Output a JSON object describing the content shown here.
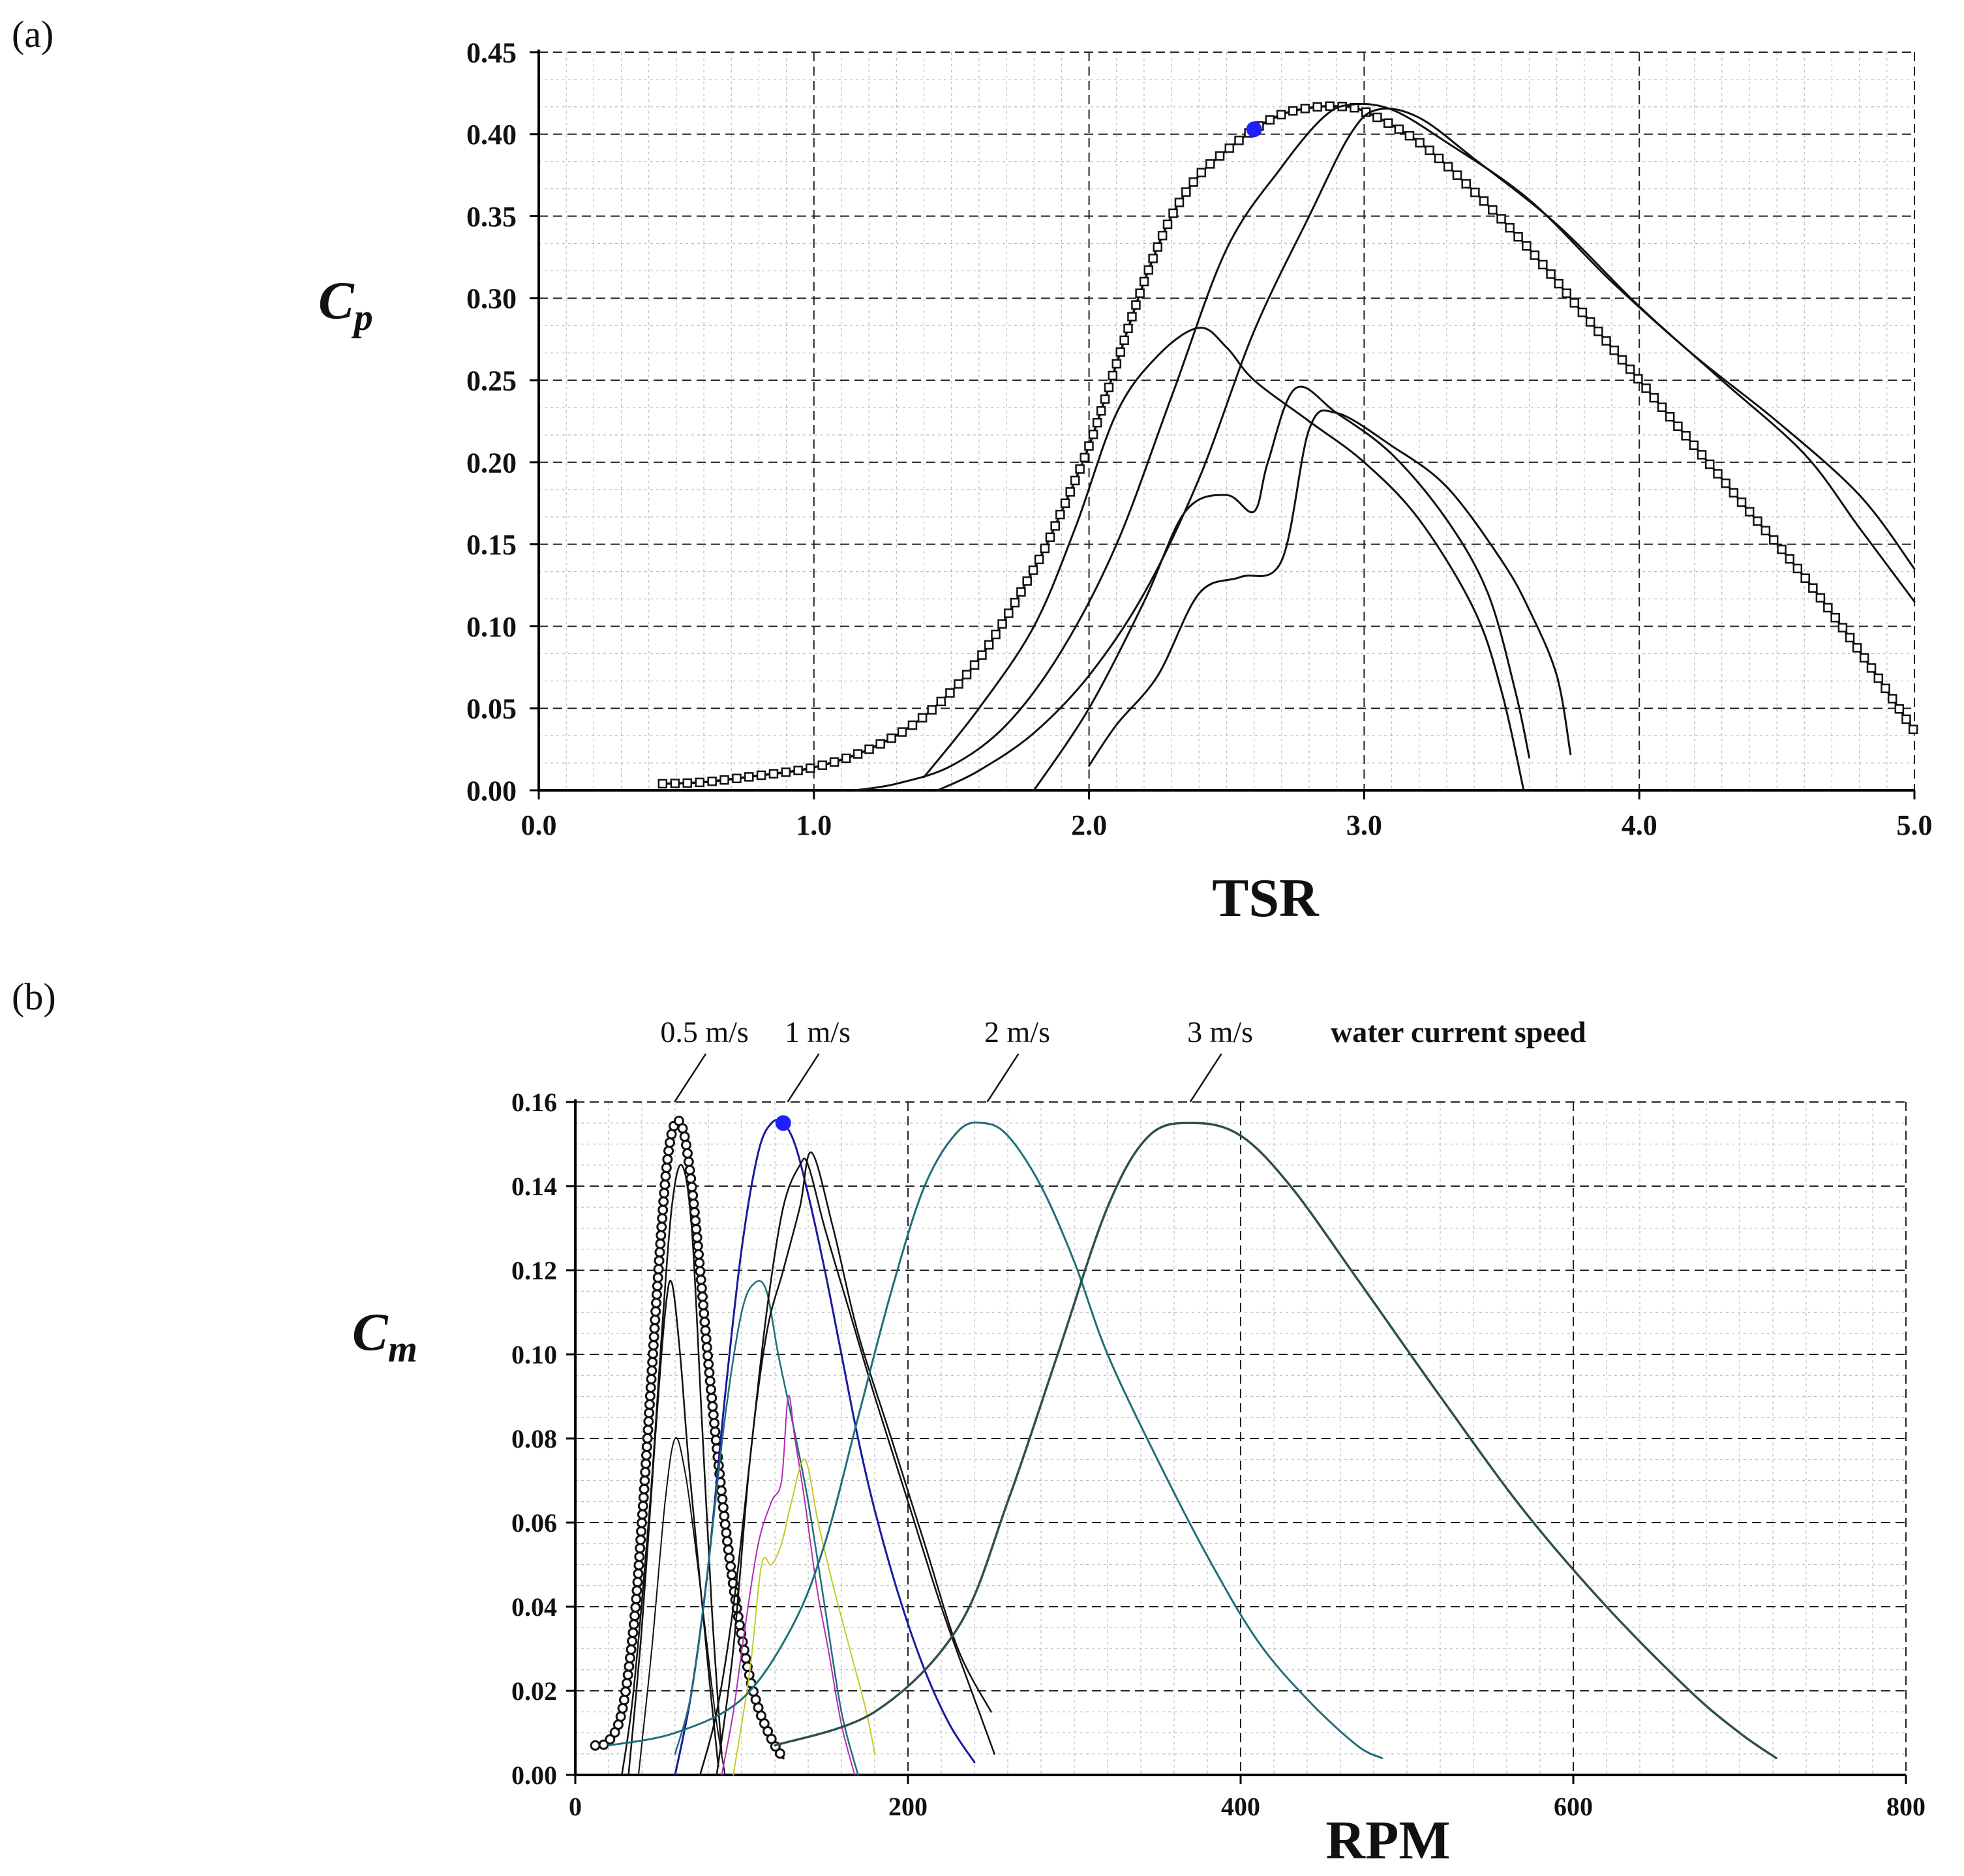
{
  "chart_data": [
    {
      "panel_label": "(a)",
      "type": "line",
      "title": "",
      "xlabel": "TSR",
      "ylabel": {
        "symbol": "C",
        "subscript": "p"
      },
      "xlim": [
        0,
        5
      ],
      "ylim": [
        0,
        0.45
      ],
      "x_ticks": [
        0,
        1,
        2,
        3,
        4,
        5
      ],
      "x_tick_labels": [
        "0.0",
        "1.0",
        "2.0",
        "3.0",
        "4.0",
        "5.0"
      ],
      "y_ticks": [
        0,
        0.05,
        0.1,
        0.15,
        0.2,
        0.25,
        0.3,
        0.35,
        0.4,
        0.45
      ],
      "y_tick_labels": [
        "0.00",
        "0.05",
        "0.10",
        "0.15",
        "0.20",
        "0.25",
        "0.30",
        "0.35",
        "0.40",
        "0.45"
      ],
      "grid": true,
      "highlight_point": {
        "x": 2.6,
        "y": 0.403,
        "color": "#1f1fff"
      },
      "series": [
        {
          "name": "main",
          "color": "#111111",
          "width": 3.5,
          "markers": "square",
          "x": [
            0.45,
            0.6,
            0.8,
            1.0,
            1.2,
            1.4,
            1.6,
            1.8,
            1.9,
            2.0,
            2.1,
            2.2,
            2.3,
            2.4,
            2.5,
            2.6,
            2.7,
            2.8,
            2.9,
            3.0,
            3.2,
            3.4,
            3.6,
            3.8,
            4.0,
            4.2,
            4.4,
            4.6,
            4.8,
            5.0
          ],
          "y": [
            0.004,
            0.005,
            0.009,
            0.014,
            0.025,
            0.045,
            0.08,
            0.135,
            0.17,
            0.21,
            0.26,
            0.31,
            0.35,
            0.375,
            0.39,
            0.403,
            0.412,
            0.416,
            0.417,
            0.414,
            0.395,
            0.365,
            0.33,
            0.29,
            0.25,
            0.21,
            0.17,
            0.13,
            0.085,
            0.036
          ]
        },
        {
          "name": "s2",
          "color": "#111111",
          "width": 3,
          "x": [
            1.15,
            1.3,
            1.5,
            1.7,
            1.9,
            2.1,
            2.3,
            2.5,
            2.7,
            2.85,
            2.95,
            3.1,
            3.3,
            3.6,
            3.9,
            4.2,
            4.5,
            4.8,
            5.0
          ],
          "y": [
            0.0,
            0.004,
            0.015,
            0.04,
            0.085,
            0.15,
            0.24,
            0.33,
            0.38,
            0.41,
            0.418,
            0.415,
            0.395,
            0.36,
            0.31,
            0.265,
            0.225,
            0.18,
            0.135
          ]
        },
        {
          "name": "s3",
          "color": "#111111",
          "width": 3,
          "x": [
            1.45,
            1.6,
            1.8,
            2.0,
            2.2,
            2.4,
            2.6,
            2.8,
            2.95,
            3.05,
            3.2,
            3.4,
            3.7,
            4.0,
            4.3,
            4.6,
            4.8,
            5.0
          ],
          "y": [
            0.0,
            0.012,
            0.035,
            0.07,
            0.12,
            0.19,
            0.28,
            0.35,
            0.4,
            0.415,
            0.41,
            0.385,
            0.345,
            0.295,
            0.25,
            0.205,
            0.16,
            0.115
          ]
        },
        {
          "name": "s4",
          "color": "#111111",
          "width": 3,
          "x": [
            1.4,
            1.6,
            1.8,
            1.95,
            2.1,
            2.25,
            2.4,
            2.5,
            2.6,
            2.8,
            3.0,
            3.2,
            3.4,
            3.5,
            3.58
          ],
          "y": [
            0.008,
            0.05,
            0.1,
            0.16,
            0.23,
            0.265,
            0.282,
            0.27,
            0.25,
            0.225,
            0.2,
            0.165,
            0.11,
            0.06,
            0.0
          ]
        },
        {
          "name": "s5",
          "color": "#111111",
          "width": 3,
          "x": [
            1.8,
            2.0,
            2.2,
            2.35,
            2.5,
            2.6,
            2.65,
            2.75,
            2.9,
            3.1,
            3.3,
            3.45,
            3.55,
            3.6
          ],
          "y": [
            0.0,
            0.05,
            0.115,
            0.17,
            0.18,
            0.17,
            0.2,
            0.245,
            0.23,
            0.205,
            0.165,
            0.12,
            0.06,
            0.02
          ]
        },
        {
          "name": "s6",
          "color": "#111111",
          "width": 3,
          "x": [
            2.0,
            2.1,
            2.25,
            2.4,
            2.55,
            2.7,
            2.8,
            2.9,
            3.1,
            3.3,
            3.5,
            3.6,
            3.7,
            3.75
          ],
          "y": [
            0.015,
            0.04,
            0.07,
            0.12,
            0.13,
            0.14,
            0.22,
            0.23,
            0.21,
            0.185,
            0.14,
            0.11,
            0.07,
            0.022
          ]
        }
      ]
    },
    {
      "panel_label": "(b)",
      "type": "line",
      "title": "",
      "xlabel": "RPM",
      "ylabel": {
        "symbol": "C",
        "subscript": "m"
      },
      "xlim": [
        0,
        800
      ],
      "ylim": [
        0,
        0.16
      ],
      "x_ticks": [
        0,
        200,
        400,
        600,
        800
      ],
      "x_tick_labels": [
        "0",
        "200",
        "400",
        "600",
        "800"
      ],
      "y_ticks": [
        0,
        0.02,
        0.04,
        0.06,
        0.08,
        0.1,
        0.12,
        0.14,
        0.16
      ],
      "y_tick_labels": [
        "0.00",
        "0.02",
        "0.04",
        "0.06",
        "0.08",
        "0.10",
        "0.12",
        "0.14",
        "0.16"
      ],
      "grid": true,
      "highlight_point": {
        "x": 125,
        "y": 0.155,
        "color": "#1f1fff"
      },
      "annotations": [
        {
          "text": "0.5 m/s",
          "x": 62
        },
        {
          "text": "1 m/s",
          "x": 130
        },
        {
          "text": "2 m/s",
          "x": 250
        },
        {
          "text": "3 m/s",
          "x": 372
        },
        {
          "text": "water current speed"
        }
      ],
      "series": [
        {
          "name": "0.5 m/s main",
          "color": "#111111",
          "width": 4,
          "markers": "circle",
          "x": [
            12,
            20,
            28,
            35,
            40,
            45,
            50,
            55,
            60,
            65,
            70,
            75,
            80,
            85,
            90,
            95,
            100,
            105,
            110,
            115,
            120,
            125
          ],
          "y": [
            0.007,
            0.008,
            0.015,
            0.035,
            0.06,
            0.09,
            0.12,
            0.145,
            0.155,
            0.153,
            0.14,
            0.12,
            0.098,
            0.078,
            0.06,
            0.045,
            0.033,
            0.023,
            0.016,
            0.011,
            0.007,
            0.004
          ]
        },
        {
          "name": "0.5 m/s b",
          "color": "#111111",
          "width": 2.5,
          "x": [
            28,
            35,
            45,
            52,
            58,
            64,
            70,
            76,
            82,
            88
          ],
          "y": [
            0.0,
            0.02,
            0.065,
            0.105,
            0.135,
            0.145,
            0.13,
            0.085,
            0.04,
            0.005
          ]
        },
        {
          "name": "0.5 m/s c",
          "color": "#111111",
          "width": 2.5,
          "x": [
            32,
            40,
            48,
            54,
            58,
            63,
            68,
            74,
            80,
            86
          ],
          "y": [
            0.0,
            0.035,
            0.08,
            0.11,
            0.117,
            0.1,
            0.075,
            0.05,
            0.025,
            0.002
          ]
        },
        {
          "name": "0.5 m/s d",
          "color": "#111111",
          "width": 2,
          "x": [
            38,
            46,
            54,
            60,
            66,
            72,
            78,
            84,
            90
          ],
          "y": [
            0.0,
            0.03,
            0.065,
            0.08,
            0.072,
            0.055,
            0.035,
            0.015,
            0.0
          ]
        },
        {
          "name": "1 m/s blue",
          "color": "#1a1a9e",
          "width": 3,
          "x": [
            60,
            70,
            80,
            90,
            100,
            110,
            118,
            125,
            132,
            140,
            150,
            160,
            170,
            180,
            195,
            210,
            225,
            240
          ],
          "y": [
            0.0,
            0.02,
            0.05,
            0.09,
            0.125,
            0.148,
            0.155,
            0.155,
            0.15,
            0.138,
            0.12,
            0.1,
            0.08,
            0.063,
            0.042,
            0.025,
            0.012,
            0.003
          ]
        },
        {
          "name": "1 m/s teal",
          "color": "#1e6f78",
          "width": 2.5,
          "x": [
            60,
            70,
            80,
            90,
            100,
            108,
            115,
            122,
            130,
            140,
            150,
            160,
            170
          ],
          "y": [
            0.005,
            0.02,
            0.05,
            0.085,
            0.11,
            0.117,
            0.115,
            0.1,
            0.085,
            0.065,
            0.04,
            0.015,
            0.0
          ]
        },
        {
          "name": "1 m/s black a",
          "color": "#111111",
          "width": 2.5,
          "x": [
            75,
            85,
            95,
            105,
            115,
            125,
            135,
            140,
            150,
            165,
            180,
            200,
            220,
            240,
            252
          ],
          "y": [
            0.0,
            0.015,
            0.04,
            0.075,
            0.11,
            0.135,
            0.145,
            0.145,
            0.13,
            0.11,
            0.09,
            0.065,
            0.04,
            0.018,
            0.005
          ]
        },
        {
          "name": "1 m/s black b",
          "color": "#111111",
          "width": 2.5,
          "x": [
            85,
            95,
            105,
            115,
            125,
            135,
            142,
            155,
            170,
            190,
            210,
            230,
            250
          ],
          "y": [
            0.0,
            0.03,
            0.075,
            0.105,
            0.12,
            0.135,
            0.148,
            0.13,
            0.105,
            0.08,
            0.055,
            0.03,
            0.015
          ]
        },
        {
          "name": "1 m/s magenta",
          "color": "#b42ab4",
          "width": 2,
          "x": [
            88,
            95,
            102,
            110,
            118,
            124,
            128,
            132,
            138,
            145,
            152,
            160,
            168
          ],
          "y": [
            0.0,
            0.015,
            0.035,
            0.055,
            0.065,
            0.07,
            0.09,
            0.08,
            0.065,
            0.045,
            0.03,
            0.012,
            0.0
          ]
        },
        {
          "name": "1 m/s yellow",
          "color": "#c8c82a",
          "width": 2,
          "x": [
            95,
            105,
            112,
            118,
            124,
            130,
            138,
            146,
            155,
            165,
            175,
            180
          ],
          "y": [
            0.0,
            0.025,
            0.05,
            0.05,
            0.055,
            0.065,
            0.075,
            0.06,
            0.045,
            0.03,
            0.015,
            0.005
          ]
        },
        {
          "name": "2 m/s",
          "color": "#1e6f78",
          "width": 3,
          "x": [
            20,
            60,
            100,
            130,
            150,
            170,
            190,
            210,
            230,
            245,
            260,
            280,
            300,
            320,
            350,
            380,
            410,
            440,
            470,
            485
          ],
          "y": [
            0.007,
            0.01,
            0.018,
            0.035,
            0.055,
            0.085,
            0.115,
            0.14,
            0.153,
            0.155,
            0.152,
            0.14,
            0.122,
            0.1,
            0.075,
            0.052,
            0.032,
            0.018,
            0.007,
            0.004
          ]
        },
        {
          "name": "3 m/s",
          "color": "#2f4f4f",
          "width": 3.5,
          "x": [
            120,
            180,
            230,
            260,
            290,
            320,
            345,
            372,
            400,
            430,
            470,
            520,
            570,
            620,
            670,
            700,
            722
          ],
          "y": [
            0.007,
            0.015,
            0.035,
            0.065,
            0.1,
            0.135,
            0.152,
            0.155,
            0.152,
            0.14,
            0.118,
            0.09,
            0.063,
            0.04,
            0.02,
            0.01,
            0.004
          ]
        }
      ]
    }
  ]
}
